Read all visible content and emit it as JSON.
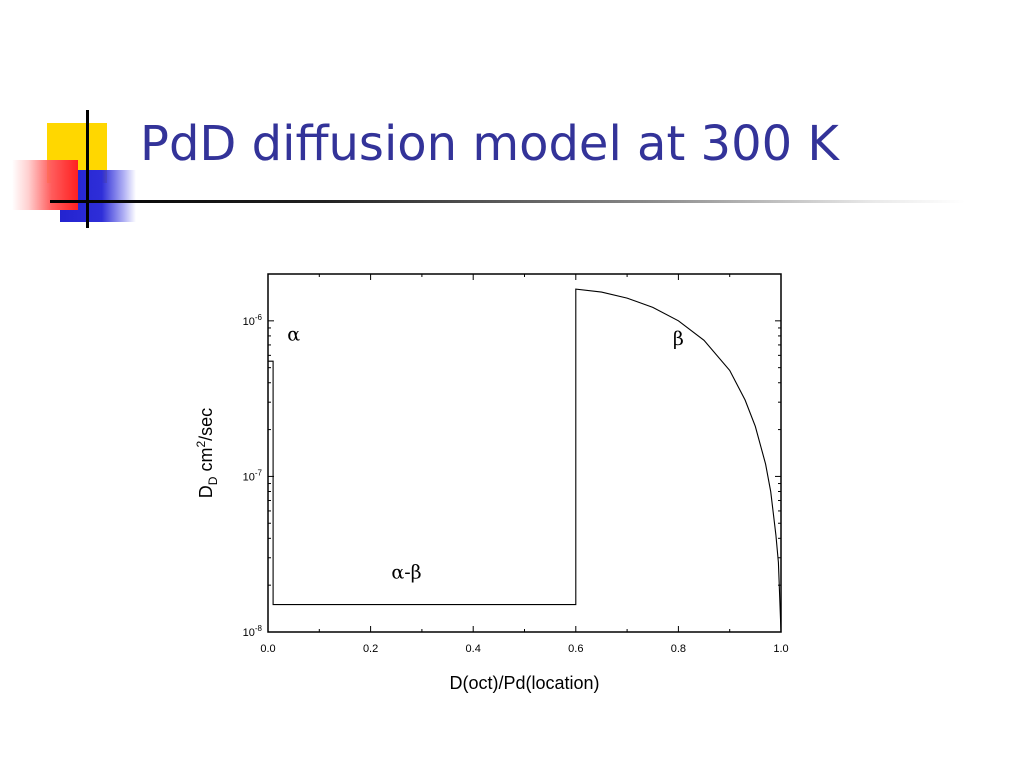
{
  "slide": {
    "title": "PdD diffusion model at 300 K",
    "colors": {
      "title": "#333399",
      "yellow": "#ffd700",
      "blue": "#2e2ed8",
      "red": "#ff2020"
    }
  },
  "chart_data": {
    "type": "line",
    "xlabel": "D(oct)/Pd(location)",
    "ylabel": {
      "main": "D",
      "main_sub": "D",
      "unit": " cm",
      "unit_sup": "2",
      "unit_tail": "/sec"
    },
    "xlim": [
      0.0,
      1.0
    ],
    "ylim": [
      1e-08,
      2e-06
    ],
    "yscale": "log",
    "x_ticks": [
      "0.0",
      "0.2",
      "0.4",
      "0.6",
      "0.8",
      "1.0"
    ],
    "y_ticks": [
      {
        "base": "10",
        "exp": "-6",
        "value": 1e-06
      },
      {
        "base": "10",
        "exp": "-7",
        "value": 1e-07
      },
      {
        "base": "10",
        "exp": "-8",
        "value": 1e-08
      }
    ],
    "annotations": [
      {
        "text": "α",
        "x": 0.05,
        "y": 7.5e-07
      },
      {
        "text": "α-β",
        "x": 0.27,
        "y": 2.2e-08
      },
      {
        "text": "β",
        "x": 0.8,
        "y": 7e-07
      }
    ],
    "series": [
      {
        "x": [
          0.0,
          0.01,
          0.01,
          0.6,
          0.6,
          0.65,
          0.7,
          0.75,
          0.8,
          0.85,
          0.9,
          0.93,
          0.95,
          0.97,
          0.98,
          0.99,
          0.995,
          1.0
        ],
        "y": [
          5.5e-07,
          5.5e-07,
          1.5e-08,
          1.5e-08,
          1.6e-06,
          1.53e-06,
          1.4e-06,
          1.22e-06,
          1e-06,
          7.5e-07,
          4.8e-07,
          3.1e-07,
          2.1e-07,
          1.2e-07,
          8e-08,
          4.2e-08,
          2.8e-08,
          1e-08
        ]
      }
    ]
  }
}
